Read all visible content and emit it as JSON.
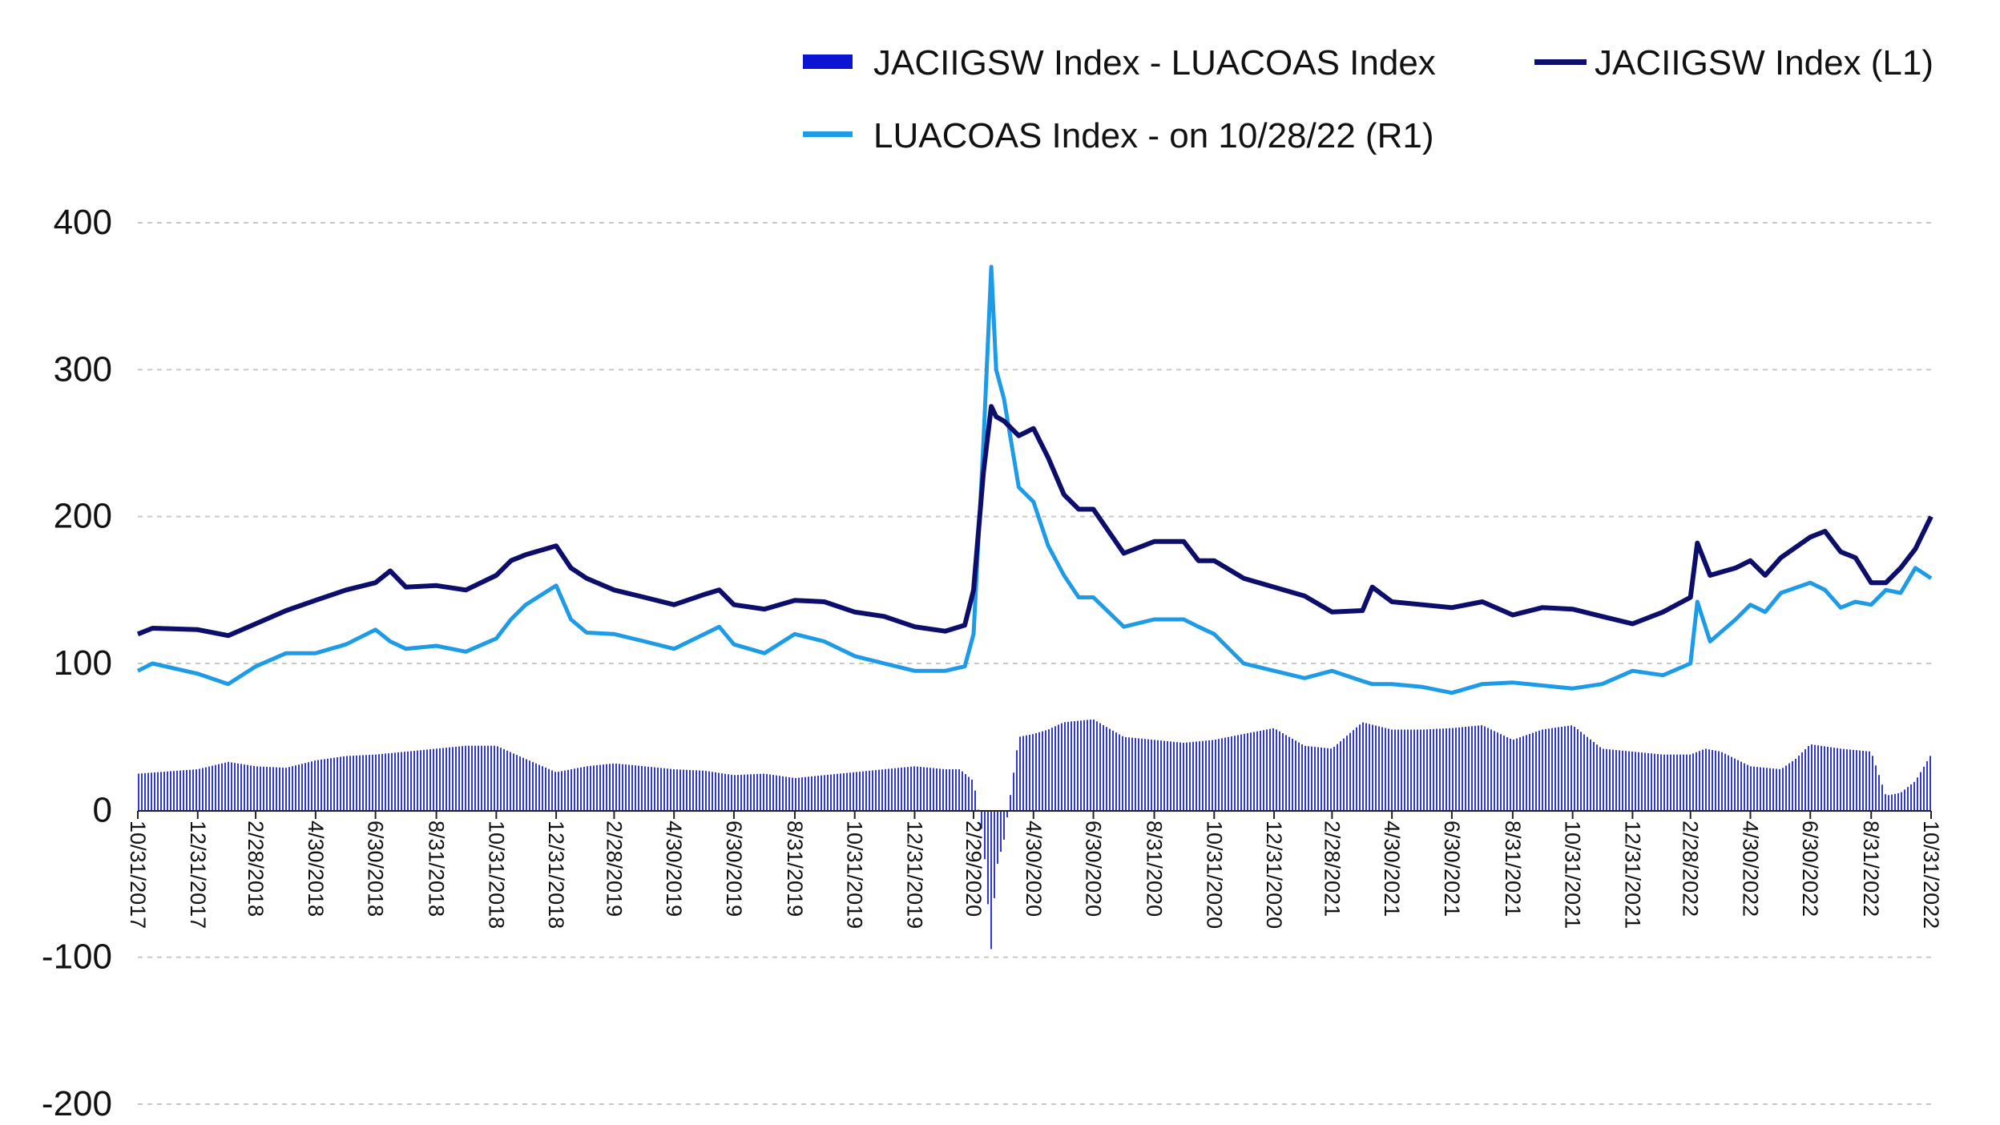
{
  "chart_data": {
    "type": "line",
    "title": "",
    "xlabel": "",
    "ylabel": "",
    "ylim": [
      -200,
      400
    ],
    "yticks": [
      400,
      300,
      200,
      100,
      0,
      -100,
      -200
    ],
    "x_start": "10/31/2017",
    "x_end": "10/31/2022",
    "xticks": [
      "10/31/2017",
      "12/31/2017",
      "2/28/2018",
      "4/30/2018",
      "6/30/2018",
      "8/31/2018",
      "10/31/2018",
      "12/31/2018",
      "2/28/2019",
      "4/30/2019",
      "6/30/2019",
      "8/31/2019",
      "10/31/2019",
      "12/31/2019",
      "2/29/2020",
      "4/30/2020",
      "6/30/2020",
      "8/31/2020",
      "10/31/2020",
      "12/31/2020",
      "2/28/2021",
      "4/30/2021",
      "6/30/2021",
      "8/31/2021",
      "10/31/2021",
      "12/31/2021",
      "2/28/2022",
      "4/30/2022",
      "6/30/2022",
      "8/31/2022",
      "10/31/2022"
    ],
    "grid": true,
    "legend_position": "top",
    "legend": [
      {
        "label": "JACIIGSW Index - LUACOAS Index",
        "kind": "bar",
        "color": "#0a14d2"
      },
      {
        "label": "JACIIGSW Index  (L1)",
        "kind": "line",
        "color": "#0d0d6b"
      },
      {
        "label": "LUACOAS Index -  on 10/28/22  (R1)",
        "kind": "line",
        "color": "#1d9be6"
      }
    ],
    "series": [
      {
        "name": "JACIIGSW Index  (L1)",
        "type": "line",
        "color": "#0d0d6b",
        "dates": [
          "10/31/2017",
          "11/15/2017",
          "12/31/2017",
          "1/31/2018",
          "2/28/2018",
          "3/31/2018",
          "4/30/2018",
          "5/31/2018",
          "6/30/2018",
          "7/15/2018",
          "7/31/2018",
          "8/31/2018",
          "9/30/2018",
          "10/31/2018",
          "11/15/2018",
          "11/30/2018",
          "12/31/2018",
          "1/15/2019",
          "1/31/2019",
          "2/28/2019",
          "3/31/2019",
          "4/30/2019",
          "5/31/2019",
          "6/15/2019",
          "6/30/2019",
          "7/31/2019",
          "8/31/2019",
          "9/30/2019",
          "10/31/2019",
          "11/30/2019",
          "12/31/2019",
          "1/31/2020",
          "2/20/2020",
          "2/29/2020",
          "3/10/2020",
          "3/18/2020",
          "3/23/2020",
          "3/31/2020",
          "4/15/2020",
          "4/30/2020",
          "5/15/2020",
          "5/31/2020",
          "6/15/2020",
          "6/30/2020",
          "7/31/2020",
          "8/31/2020",
          "9/30/2020",
          "10/15/2020",
          "10/31/2020",
          "11/30/2020",
          "12/31/2020",
          "1/31/2021",
          "2/28/2021",
          "3/31/2021",
          "4/10/2021",
          "4/30/2021",
          "5/31/2021",
          "6/30/2021",
          "7/31/2021",
          "8/31/2021",
          "9/30/2021",
          "10/31/2021",
          "11/30/2021",
          "12/31/2021",
          "1/31/2022",
          "2/28/2022",
          "3/7/2022",
          "3/20/2022",
          "4/15/2022",
          "4/30/2022",
          "5/15/2022",
          "5/31/2022",
          "6/30/2022",
          "7/15/2022",
          "7/31/2022",
          "8/15/2022",
          "8/31/2022",
          "9/15/2022",
          "9/30/2022",
          "10/15/2022",
          "10/31/2022"
        ],
        "values": [
          120,
          124,
          123,
          119,
          127,
          136,
          143,
          150,
          155,
          163,
          152,
          153,
          150,
          160,
          170,
          174,
          180,
          165,
          158,
          150,
          145,
          140,
          147,
          150,
          140,
          137,
          143,
          142,
          135,
          132,
          125,
          122,
          126,
          150,
          230,
          275,
          268,
          265,
          255,
          260,
          240,
          215,
          205,
          205,
          175,
          183,
          183,
          170,
          170,
          158,
          152,
          146,
          135,
          136,
          152,
          142,
          140,
          138,
          142,
          133,
          138,
          137,
          132,
          127,
          135,
          145,
          182,
          160,
          165,
          170,
          160,
          172,
          186,
          190,
          176,
          172,
          155,
          155,
          165,
          178,
          200
        ]
      },
      {
        "name": "LUACOAS Index -  on 10/28/22  (R1)",
        "type": "line",
        "color": "#1d9be6",
        "dates": [
          "10/31/2017",
          "11/15/2017",
          "12/31/2017",
          "1/31/2018",
          "2/28/2018",
          "3/31/2018",
          "4/30/2018",
          "5/31/2018",
          "6/30/2018",
          "7/15/2018",
          "7/31/2018",
          "8/31/2018",
          "9/30/2018",
          "10/31/2018",
          "11/15/2018",
          "11/30/2018",
          "12/31/2018",
          "1/15/2019",
          "1/31/2019",
          "2/28/2019",
          "3/31/2019",
          "4/30/2019",
          "5/31/2019",
          "6/15/2019",
          "6/30/2019",
          "7/31/2019",
          "8/31/2019",
          "9/30/2019",
          "10/31/2019",
          "11/30/2019",
          "12/31/2019",
          "1/31/2020",
          "2/20/2020",
          "2/29/2020",
          "3/10/2020",
          "3/18/2020",
          "3/23/2020",
          "3/31/2020",
          "4/15/2020",
          "4/30/2020",
          "5/15/2020",
          "5/31/2020",
          "6/15/2020",
          "6/30/2020",
          "7/31/2020",
          "8/31/2020",
          "9/30/2020",
          "10/15/2020",
          "10/31/2020",
          "11/30/2020",
          "12/31/2020",
          "1/31/2021",
          "2/28/2021",
          "3/31/2021",
          "4/10/2021",
          "4/30/2021",
          "5/31/2021",
          "6/30/2021",
          "7/31/2021",
          "8/31/2021",
          "9/30/2021",
          "10/31/2021",
          "11/30/2021",
          "12/31/2021",
          "1/31/2022",
          "2/28/2022",
          "3/7/2022",
          "3/20/2022",
          "4/15/2022",
          "4/30/2022",
          "5/15/2022",
          "5/31/2022",
          "6/30/2022",
          "7/15/2022",
          "7/31/2022",
          "8/15/2022",
          "8/31/2022",
          "9/15/2022",
          "9/30/2022",
          "10/15/2022",
          "10/31/2022"
        ],
        "values": [
          95,
          100,
          93,
          86,
          98,
          107,
          107,
          113,
          123,
          115,
          110,
          112,
          108,
          117,
          130,
          140,
          153,
          130,
          121,
          120,
          115,
          110,
          120,
          125,
          113,
          107,
          120,
          115,
          105,
          100,
          95,
          95,
          98,
          120,
          250,
          370,
          300,
          280,
          220,
          210,
          180,
          160,
          145,
          145,
          125,
          130,
          130,
          125,
          120,
          100,
          95,
          90,
          95,
          88,
          86,
          86,
          84,
          80,
          86,
          87,
          85,
          83,
          86,
          95,
          92,
          100,
          142,
          115,
          130,
          140,
          135,
          148,
          155,
          150,
          138,
          142,
          140,
          150,
          148,
          165,
          158
        ]
      },
      {
        "name": "JACIIGSW Index - LUACOAS Index",
        "type": "bar",
        "color": "#0a14d2",
        "dates": [
          "10/31/2017",
          "12/31/2017",
          "1/31/2018",
          "2/28/2018",
          "3/31/2018",
          "4/30/2018",
          "5/31/2018",
          "6/30/2018",
          "7/31/2018",
          "8/31/2018",
          "9/30/2018",
          "10/31/2018",
          "11/30/2018",
          "12/31/2018",
          "1/31/2019",
          "2/28/2019",
          "3/31/2019",
          "4/30/2019",
          "5/31/2019",
          "6/30/2019",
          "7/31/2019",
          "8/31/2019",
          "9/30/2019",
          "10/31/2019",
          "11/30/2019",
          "12/31/2019",
          "1/31/2020",
          "2/15/2020",
          "2/29/2020",
          "3/10/2020",
          "3/18/2020",
          "3/23/2020",
          "3/31/2020",
          "4/15/2020",
          "4/30/2020",
          "5/15/2020",
          "5/31/2020",
          "6/30/2020",
          "7/31/2020",
          "8/31/2020",
          "9/30/2020",
          "10/31/2020",
          "11/30/2020",
          "12/31/2020",
          "1/31/2021",
          "2/28/2021",
          "3/31/2021",
          "4/30/2021",
          "5/31/2021",
          "6/30/2021",
          "7/31/2021",
          "8/31/2021",
          "9/30/2021",
          "10/31/2021",
          "11/30/2021",
          "12/31/2021",
          "1/31/2022",
          "2/28/2022",
          "3/15/2022",
          "3/31/2022",
          "4/30/2022",
          "5/31/2022",
          "6/15/2022",
          "6/30/2022",
          "7/31/2022",
          "8/31/2022",
          "9/15/2022",
          "9/30/2022",
          "10/15/2022",
          "10/31/2022"
        ],
        "values": [
          25,
          28,
          33,
          30,
          29,
          34,
          37,
          38,
          40,
          42,
          44,
          44,
          35,
          26,
          30,
          32,
          30,
          28,
          27,
          24,
          25,
          22,
          24,
          26,
          28,
          30,
          28,
          28,
          20,
          -20,
          -95,
          -40,
          -20,
          50,
          52,
          55,
          60,
          62,
          50,
          48,
          46,
          48,
          52,
          56,
          44,
          42,
          60,
          55,
          55,
          56,
          58,
          48,
          55,
          58,
          42,
          40,
          38,
          38,
          42,
          40,
          30,
          28,
          35,
          45,
          42,
          40,
          10,
          12,
          20,
          38
        ]
      }
    ]
  }
}
